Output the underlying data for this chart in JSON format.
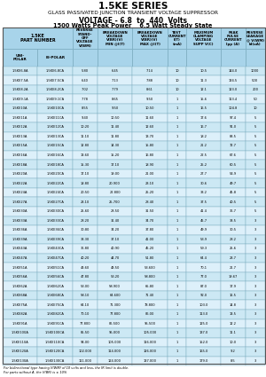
{
  "title": "1.5KE SERIES",
  "subtitle1": "GLASS PASSIVATED JUNCTION TRANSIENT VOLTAGE SUPPRESSOR",
  "subtitle2": "VOLTAGE - 6.8  to  440  Volts",
  "subtitle3": "1500 Watts Peak Power    6.5 Watt Steady State",
  "header_col1_row1": "1.5KE\nPART NUMBER",
  "header_col1_row2a": "UNI-\nPOLAR",
  "header_col1_row2b": "BI-POLAR",
  "header_cols": [
    "REVERSE\nSTAND-\nOFF\nVOLTAGE\nV(WM)",
    "BREAKDOWN\nVOLTAGE\nV(BR)(V)\nMIN @I(T)",
    "BREAKDOWN\nVOLTAGE\nV(BR)(V)\nMAX @I(T)",
    "TEST\nCURRENT\nI(T)\n(mA)",
    "MAXIMUM\nCLAMPING\nVOLTAGE\nSUPP V(C)",
    "PEAK\nPULSE\nCURRENT\nIpp (A)",
    "REVERSE\nLEAKAGE\n@ V(WM)\nId(uA)"
  ],
  "rows": [
    [
      "1.5KE6.8A",
      "1.5KE6.8CA",
      "5.80",
      "6.45",
      "7.14",
      "10",
      "10.5",
      "144.0",
      "1000"
    ],
    [
      "1.5KE7.5A",
      "1.5KE7.5CA",
      "6.40",
      "7.13",
      "7.88",
      "10",
      "11.3",
      "134.5",
      "500"
    ],
    [
      "1.5KE8.2A",
      "1.5KE8.2CA",
      "7.02",
      "7.79",
      "8.61",
      "10",
      "12.1",
      "123.0",
      "200"
    ],
    [
      "1.5KE9.1A",
      "1.5KE9.1CA",
      "7.78",
      "8.65",
      "9.50",
      "1",
      "15.6",
      "113.4",
      "50"
    ],
    [
      "1.5KE10A",
      "1.5KE10CA",
      "8.55",
      "9.50",
      "10.50",
      "1",
      "16.5",
      "104.8",
      "10"
    ],
    [
      "1.5KE11A",
      "1.5KE11CA",
      "9.40",
      "10.50",
      "11.60",
      "1",
      "17.6",
      "97.4",
      "5"
    ],
    [
      "1.5KE12A",
      "1.5KE12CA",
      "10.20",
      "11.40",
      "12.60",
      "1",
      "16.7",
      "91.0",
      "5"
    ],
    [
      "1.5KE13A",
      "1.5KE13CA",
      "11.10",
      "11.80",
      "13.70",
      "1",
      "18.2",
      "83.5",
      "5"
    ],
    [
      "1.5KE15A",
      "1.5KE15CA",
      "12.80",
      "14.30",
      "15.80",
      "1",
      "21.2",
      "72.7",
      "5"
    ],
    [
      "1.5KE16A",
      "1.5KE16CA",
      "13.60",
      "15.20",
      "16.80",
      "1",
      "22.5",
      "67.6",
      "5"
    ],
    [
      "1.5KE18A",
      "1.5KE18CA",
      "15.30",
      "17.10",
      "18.90",
      "1",
      "25.2",
      "60.5",
      "5"
    ],
    [
      "1.5KE20A",
      "1.5KE20CA",
      "17.10",
      "19.00",
      "21.00",
      "1",
      "27.7",
      "54.9",
      "5"
    ],
    [
      "1.5KE22A",
      "1.5KE22CA",
      "18.80",
      "20.900",
      "23.10",
      "1",
      "30.6",
      "49.7",
      "5"
    ],
    [
      "1.5KE24A",
      "1.5KE24CA",
      "20.50",
      "22.800",
      "25.20",
      "1",
      "33.2",
      "45.8",
      "5"
    ],
    [
      "1.5KE27A",
      "1.5KE27CA",
      "23.10",
      "25.700",
      "28.40",
      "1",
      "37.5",
      "40.5",
      "5"
    ],
    [
      "1.5KE30A",
      "1.5KE30CA",
      "25.60",
      "28.50",
      "31.50",
      "1",
      "41.4",
      "36.7",
      "5"
    ],
    [
      "1.5KE33A",
      "1.5KE33CA",
      "28.20",
      "31.40",
      "34.70",
      "1",
      "45.7",
      "33.5",
      "3"
    ],
    [
      "1.5KE36A",
      "1.5KE36CA",
      "30.80",
      "34.20",
      "37.80",
      "1",
      "49.9",
      "30.5",
      "3"
    ],
    [
      "1.5KE39A",
      "1.5KE39CA",
      "33.30",
      "37.10",
      "41.00",
      "1",
      "53.9",
      "28.2",
      "3"
    ],
    [
      "1.5KE43A",
      "1.5KE43CA",
      "36.80",
      "40.90",
      "45.20",
      "1",
      "59.3",
      "25.6",
      "3"
    ],
    [
      "1.5KE47A",
      "1.5KE47CA",
      "40.20",
      "44.70",
      "51.80",
      "1",
      "64.4",
      "23.7",
      "3"
    ],
    [
      "1.5KE51A",
      "1.5KE51CA",
      "43.60",
      "48.50",
      "53.600",
      "1",
      "70.1",
      "21.7",
      "3"
    ],
    [
      "1.5KE56A",
      "1.5KE56CA",
      "47.80",
      "53.20",
      "58.800",
      "1",
      "77.0",
      "19.67",
      "3"
    ],
    [
      "1.5KE62A",
      "1.5KE62CA",
      "53.00",
      "58.900",
      "65.80",
      "1",
      "87.0",
      "17.9",
      "3"
    ],
    [
      "1.5KE68A",
      "1.5KE68CA",
      "58.10",
      "64.600",
      "71.40",
      "1",
      "92.0",
      "16.5",
      "3"
    ],
    [
      "1.5KE75A",
      "1.5KE75CA",
      "64.10",
      "71.300",
      "78.800",
      "1",
      "103.0",
      "14.8",
      "3"
    ],
    [
      "1.5KE82A",
      "1.5KE82CA",
      "70.10",
      "77.800",
      "86.00",
      "1",
      "113.0",
      "13.5",
      "3"
    ],
    [
      "1.5KE91A",
      "1.5KE91CA",
      "77.800",
      "86.500",
      "95.500",
      "1",
      "125.0",
      "12.2",
      "3"
    ],
    [
      "1.5KE100A",
      "1.5KE100CA",
      "85.50",
      "95.000",
      "105.000",
      "1",
      "137.0",
      "11.1",
      "3"
    ],
    [
      "1.5KE110A",
      "1.5KE110CA",
      "94.00",
      "105.000",
      "116.000",
      "1",
      "152.0",
      "10.0",
      "3"
    ],
    [
      "1.5KE120A",
      "1.5KE120CA",
      "102.000",
      "114.000",
      "126.000",
      "1",
      "165.0",
      "9.2",
      "3"
    ],
    [
      "1.5KE130A",
      "1.5KE130CA",
      "111.000",
      "124.000",
      "137.000",
      "1",
      "179.0",
      "8.5",
      "3"
    ]
  ],
  "footer1": "For bidirectional type having V(WM) of 10 volts and less, the IR limit is double.",
  "footer2": "For parts without A, the V(BR) is ± 10%",
  "bg_color_odd": "#cce8f4",
  "bg_color_even": "#ddf0fa",
  "header_bg": "#a8d4ea",
  "border_color": "#7aabbf",
  "text_color": "#000000",
  "title_color": "#000000"
}
